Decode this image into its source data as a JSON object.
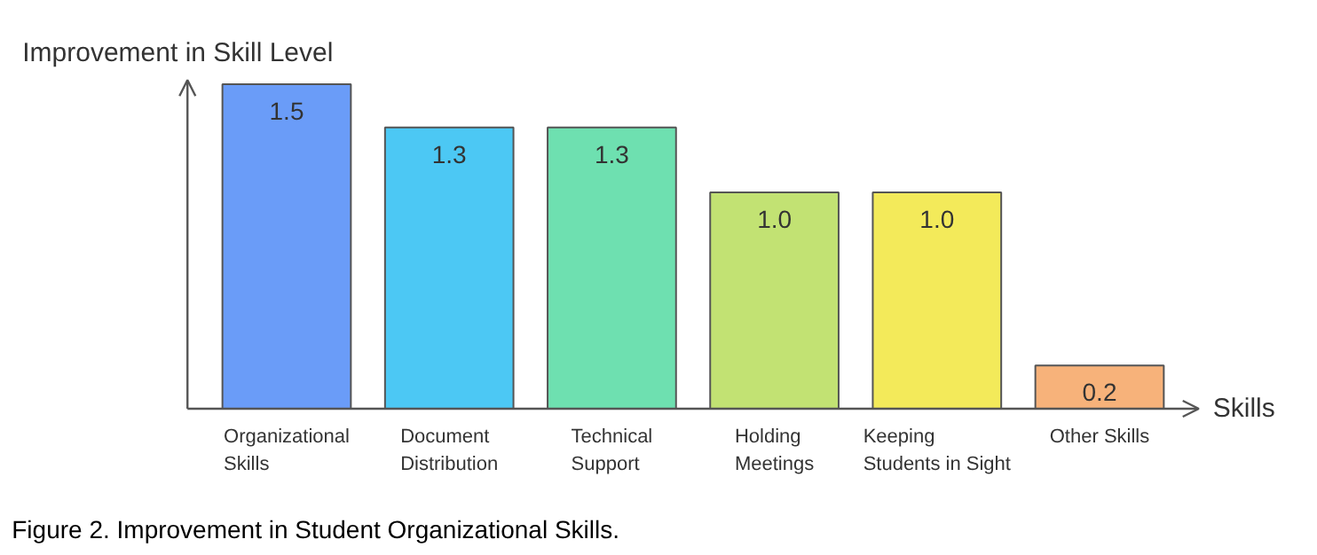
{
  "chart_data": {
    "type": "bar",
    "ylabel": "Improvement in Skill Level",
    "xlabel": "Skills",
    "categories": [
      "Organizational\nSkills",
      "Document\nDistribution",
      "Technical\nSupport",
      "Holding\nMeetings",
      "Keeping\nStudents in Sight",
      "Other Skills"
    ],
    "values": [
      1.5,
      1.3,
      1.3,
      1.0,
      1.0,
      0.2
    ],
    "value_labels": [
      "1.5",
      "1.3",
      "1.3",
      "1.0",
      "1.0",
      "0.2"
    ],
    "colors": [
      "#6a9cf8",
      "#4cc8f4",
      "#6ee0b0",
      "#c2e273",
      "#f3ea5a",
      "#f7b27a"
    ],
    "annotations": [
      "Figure 2. Improvement in Student Organizational Skills."
    ]
  }
}
